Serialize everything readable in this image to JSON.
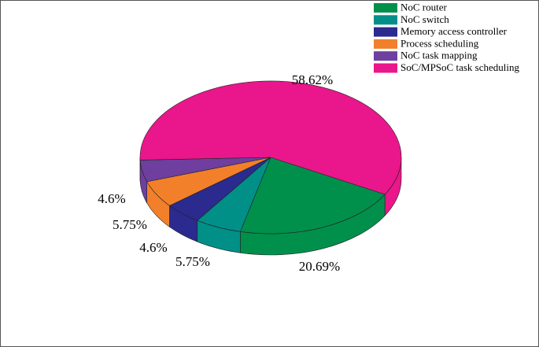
{
  "chart_data": {
    "type": "pie3d",
    "categories": [
      "NoC router",
      "NoC switch",
      "Memory access controller",
      "Process scheduling",
      "NoC task mapping",
      "SoC/MPSoC task scheduling"
    ],
    "values": [
      20.69,
      5.75,
      4.6,
      5.75,
      4.6,
      58.62
    ],
    "value_labels": [
      "20.69%",
      "5.75%",
      "4.6%",
      "5.75%",
      "4.6%",
      "58.62%"
    ],
    "colors": [
      "#00904c",
      "#009088",
      "#2b2a8e",
      "#f2802a",
      "#6e3f9e",
      "#ea168b"
    ],
    "legend": "upper right"
  }
}
